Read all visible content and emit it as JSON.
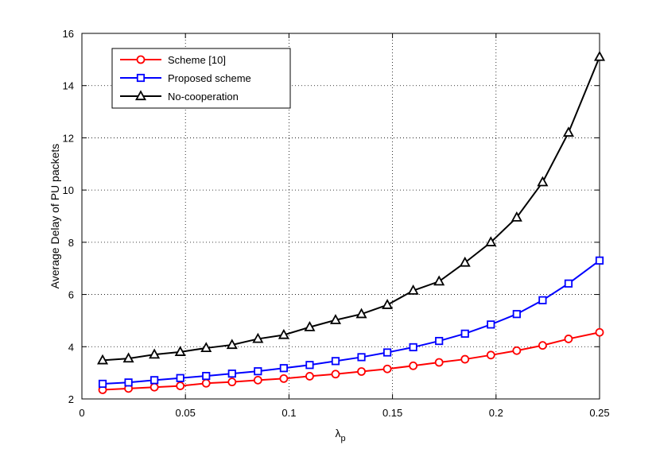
{
  "chart_data": {
    "type": "line",
    "title": "",
    "xlabel": "λ",
    "xlabel_sub": "p",
    "ylabel": "Average Delay of PU packets",
    "xlim": [
      0,
      0.25
    ],
    "ylim": [
      2,
      16
    ],
    "x_ticks": [
      0,
      0.05,
      0.1,
      0.15,
      0.2,
      0.25
    ],
    "x_tick_labels": [
      "0",
      "0.05",
      "0.1",
      "0.15",
      "0.2",
      "0.25"
    ],
    "y_ticks": [
      2,
      4,
      6,
      8,
      10,
      12,
      14,
      16
    ],
    "y_tick_labels": [
      "2",
      "4",
      "6",
      "8",
      "10",
      "12",
      "14",
      "16"
    ],
    "grid": true,
    "legend_position": "top-left",
    "x": [
      0.01,
      0.0225,
      0.035,
      0.0475,
      0.06,
      0.0725,
      0.085,
      0.0975,
      0.11,
      0.1225,
      0.135,
      0.1475,
      0.16,
      0.1725,
      0.185,
      0.1975,
      0.21,
      0.2225,
      0.235,
      0.25
    ],
    "series": [
      {
        "name": "Scheme [10]",
        "color": "#ff0000",
        "marker": "circle",
        "values": [
          2.35,
          2.4,
          2.45,
          2.5,
          2.6,
          2.65,
          2.72,
          2.78,
          2.87,
          2.95,
          3.05,
          3.15,
          3.27,
          3.4,
          3.52,
          3.68,
          3.85,
          4.05,
          4.3,
          4.55
        ]
      },
      {
        "name": "Proposed scheme",
        "color": "#0000ff",
        "marker": "square",
        "values": [
          2.58,
          2.63,
          2.72,
          2.8,
          2.88,
          2.97,
          3.06,
          3.18,
          3.3,
          3.45,
          3.6,
          3.78,
          3.98,
          4.22,
          4.5,
          4.85,
          5.25,
          5.78,
          6.42,
          7.3
        ]
      },
      {
        "name": "No-cooperation",
        "color": "#000000",
        "marker": "triangle",
        "values": [
          3.48,
          3.55,
          3.7,
          3.8,
          3.95,
          4.07,
          4.3,
          4.45,
          4.75,
          5.02,
          5.25,
          5.6,
          6.15,
          6.5,
          7.22,
          8.0,
          8.95,
          10.3,
          12.2,
          15.1
        ]
      }
    ]
  }
}
